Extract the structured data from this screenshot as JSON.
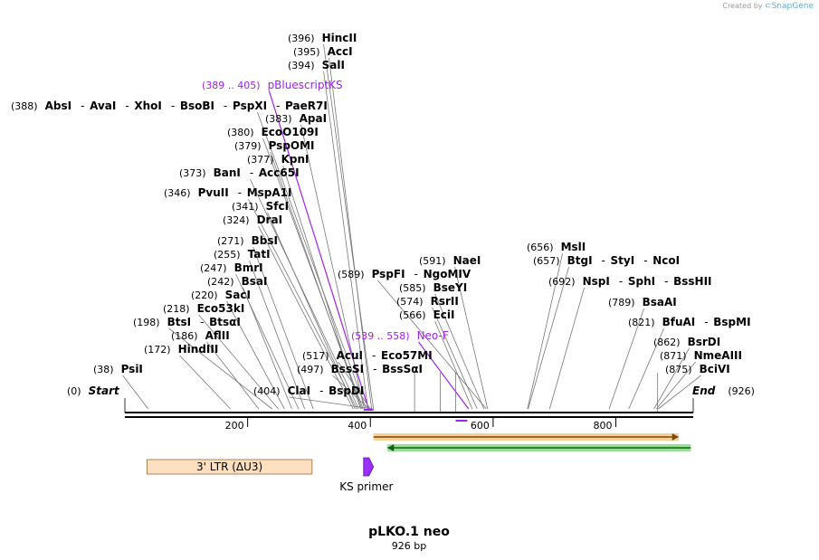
{
  "credit": {
    "prefix": "Created by",
    "brand": "SnapGene"
  },
  "title": "pLKO.1 neo",
  "length_label": "926 bp",
  "sequence_length": 926,
  "ticks": [
    "200",
    "400",
    "600",
    "800"
  ],
  "ticks_values": [
    200,
    400,
    600,
    800
  ],
  "labels": [
    {
      "pos": "(396)",
      "names": [
        "HincII"
      ],
      "line_bp": 405
    },
    {
      "pos": "(395)",
      "names": [
        "AccI"
      ],
      "line_bp": 402
    },
    {
      "pos": "(394)",
      "names": [
        "SalI"
      ],
      "line_bp": 396
    },
    {
      "pos": "(389 .. 405)",
      "names": [
        "pBluescriptKS"
      ],
      "primer": true,
      "line_bp": 397
    },
    {
      "pos": "(388)",
      "names": [
        "AbsI",
        "AvaI",
        "XhoI",
        "BsoBI",
        "PspXI",
        "PaeR7I"
      ],
      "line_bp": 393
    },
    {
      "pos": "(383)",
      "names": [
        "ApaI"
      ],
      "line_bp": 390
    },
    {
      "pos": "(380)",
      "names": [
        "EcoO109I"
      ],
      "line_bp": 388
    },
    {
      "pos": "(379)",
      "names": [
        "PspOMI"
      ],
      "line_bp": 386
    },
    {
      "pos": "(377)",
      "names": [
        "KpnI"
      ],
      "line_bp": 384
    },
    {
      "pos": "(373)",
      "names": [
        "BanI",
        "Acc65I"
      ],
      "line_bp": 381
    },
    {
      "pos": "(346)",
      "names": [
        "PvuII",
        "MspA1I"
      ],
      "line_bp": 378
    },
    {
      "pos": "(341)",
      "names": [
        "SfcI"
      ],
      "line_bp": 375
    },
    {
      "pos": "(324)",
      "names": [
        "DraI"
      ],
      "line_bp": 372
    },
    {
      "pos": "(271)",
      "names": [
        "BbsI"
      ],
      "line_bp": 307
    },
    {
      "pos": "(255)",
      "names": [
        "TatI"
      ],
      "line_bp": 293
    },
    {
      "pos": "(247)",
      "names": [
        "BmrI"
      ],
      "line_bp": 283
    },
    {
      "pos": "(242)",
      "names": [
        "BsaI"
      ],
      "line_bp": 272
    },
    {
      "pos": "(220)",
      "names": [
        "SacI"
      ],
      "line_bp": 260
    },
    {
      "pos": "(218)",
      "names": [
        "Eco53kI"
      ],
      "line_bp": 250
    },
    {
      "pos": "(198)",
      "names": [
        "BtsI",
        "BtsαI"
      ],
      "line_bp": 240
    },
    {
      "pos": "(186)",
      "names": [
        "AflII"
      ],
      "line_bp": 218
    },
    {
      "pos": "(172)",
      "names": [
        "HindIII"
      ],
      "line_bp": 172
    },
    {
      "pos": "(38)",
      "names": [
        "PsiI"
      ],
      "line_bp": 38
    },
    {
      "pos": "(0)",
      "names": [
        "Start"
      ],
      "italic": true,
      "line_bp": 0
    },
    {
      "pos": "(404)",
      "names": [
        "ClaI",
        "BspDI"
      ],
      "line_bp": 404
    },
    {
      "pos": "(497)",
      "names": [
        "BssSI",
        "BssSαI"
      ],
      "line_bp": 398
    },
    {
      "pos": "(517)",
      "names": [
        "AcuI",
        "Eco57MI"
      ],
      "line_bp": 400
    },
    {
      "pos": "(539 .. 558)",
      "names": [
        "Neo-F"
      ],
      "primer": true,
      "line_bp": 560
    },
    {
      "pos": "(566)",
      "names": [
        "EciI"
      ],
      "line_bp": 566
    },
    {
      "pos": "(574)",
      "names": [
        "RsrII"
      ],
      "line_bp": 574
    },
    {
      "pos": "(585)",
      "names": [
        "BseYI"
      ],
      "line_bp": 585
    },
    {
      "pos": "(589)",
      "names": [
        "PspFI",
        "NgoMIV"
      ],
      "line_bp": 589
    },
    {
      "pos": "(591)",
      "names": [
        "NaeI"
      ],
      "line_bp": 591
    },
    {
      "pos": "(656)",
      "names": [
        "MslI"
      ],
      "line_bp": 656
    },
    {
      "pos": "(657)",
      "names": [
        "BtgI",
        "StyI",
        "NcoI"
      ],
      "line_bp": 657
    },
    {
      "pos": "(692)",
      "names": [
        "NspI",
        "SphI",
        "BssHII"
      ],
      "line_bp": 692
    },
    {
      "pos": "(789)",
      "names": [
        "BsaAI"
      ],
      "line_bp": 789
    },
    {
      "pos": "(821)",
      "names": [
        "BfuAI",
        "BspMI"
      ],
      "line_bp": 821
    },
    {
      "pos": "(862)",
      "names": [
        "BsrDI"
      ],
      "line_bp": 862
    },
    {
      "pos": "(871)",
      "names": [
        "NmeAIII"
      ],
      "line_bp": 866
    },
    {
      "pos": "(875)",
      "names": [
        "BciVI"
      ],
      "line_bp": 869
    },
    {
      "pos": "(926)",
      "names": [
        "End"
      ],
      "italic": true,
      "line_bp": 926
    }
  ],
  "extra_marks": [
    472,
    514,
    539,
    868
  ],
  "features": [
    {
      "name": "3' LTR (ΔU3)",
      "start_bp": 36,
      "end_bp": 305,
      "color": "#fde0c0",
      "stroke": "#9a6a3a"
    },
    {
      "name": "KS primer",
      "start_bp": 389,
      "end_bp": 405,
      "color": "#9b30ff",
      "stroke": "#5a0aa0"
    }
  ],
  "orf_bars": [
    {
      "start_bp": 405,
      "end_bp": 902,
      "color": "#f0a030",
      "stroke": "#7a4a00",
      "direction": "right"
    },
    {
      "start_bp": 428,
      "end_bp": 922,
      "color": "#30c030",
      "stroke": "#106010",
      "direction": "left"
    }
  ],
  "colors": {
    "primer": "#a020f0",
    "backbone": "#000000",
    "line": "#777777"
  }
}
